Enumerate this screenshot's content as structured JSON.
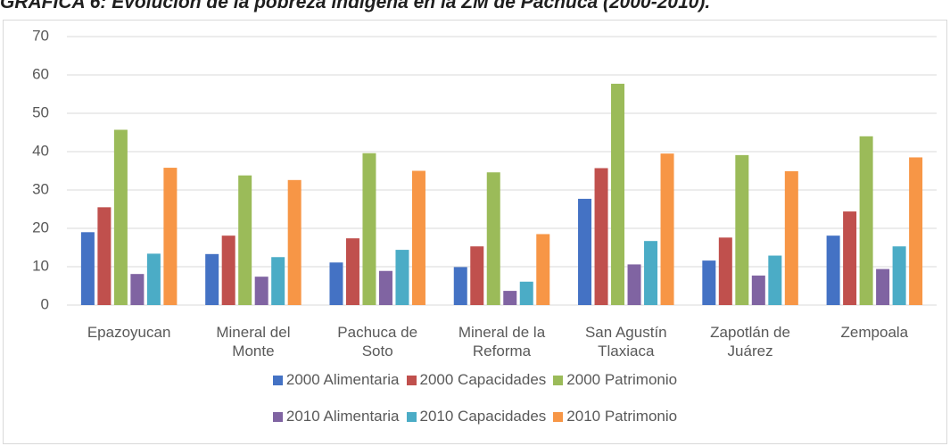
{
  "chart_data": {
    "type": "bar",
    "title": "GRÁFICA 6: Evolución de la pobreza indígena en la ZM de Pachuca (2000-2010).",
    "categories": [
      "Epazoyucan",
      "Mineral del Monte",
      "Pachuca de Soto",
      "Mineral de la Reforma",
      "San Agustín Tlaxiaca",
      "Zapotlán de Juárez",
      "Zempoala"
    ],
    "series": [
      {
        "name": "2000 Alimentaria",
        "color": "#4472c4",
        "values": [
          19,
          13.3,
          11.1,
          9.9,
          27.7,
          11.6,
          18.1
        ]
      },
      {
        "name": "2000 Capacidades",
        "color": "#c0504d",
        "values": [
          25.5,
          18.1,
          17.4,
          15.3,
          35.7,
          17.6,
          24.4
        ]
      },
      {
        "name": "2000 Patrimonio",
        "color": "#9bbb59",
        "values": [
          45.7,
          33.8,
          39.6,
          34.6,
          57.7,
          39.1,
          44
        ]
      },
      {
        "name": "2010 Alimentaria",
        "color": "#8064a2",
        "values": [
          8.1,
          7.4,
          8.9,
          3.7,
          10.6,
          7.7,
          9.4
        ]
      },
      {
        "name": "2010 Capacidades",
        "color": "#4bacc6",
        "values": [
          13.4,
          12.5,
          14.4,
          6.1,
          16.7,
          12.9,
          15.3
        ]
      },
      {
        "name": "2010 Patrimonio",
        "color": "#f79646",
        "values": [
          35.8,
          32.6,
          35,
          18.5,
          39.5,
          34.9,
          38.5
        ]
      }
    ],
    "ylim": [
      0,
      70
    ],
    "yticks": [
      0,
      10,
      20,
      30,
      40,
      50,
      60,
      70
    ],
    "grid": true,
    "legend": "bottom"
  }
}
